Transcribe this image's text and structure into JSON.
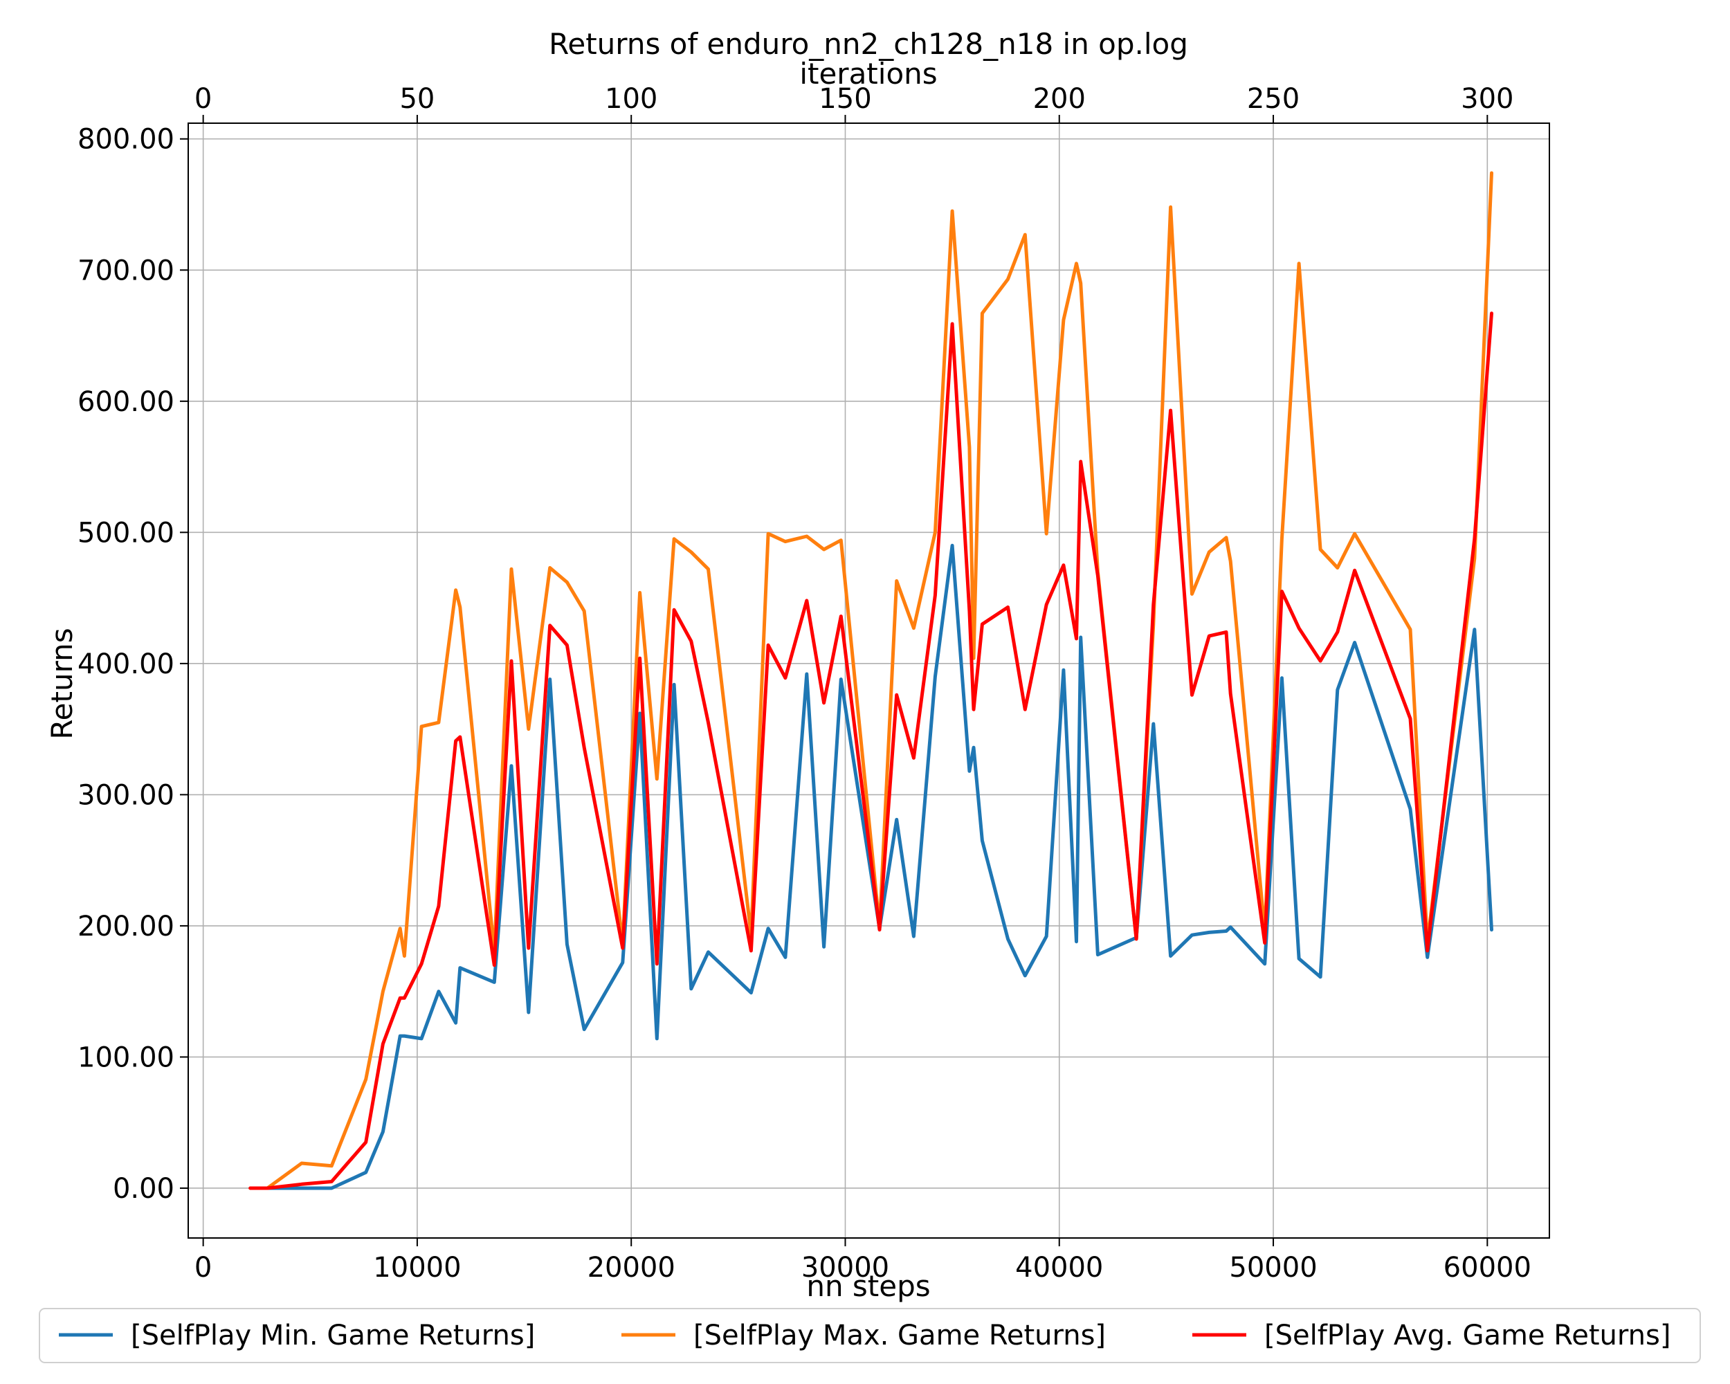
{
  "chart_data": {
    "type": "line",
    "title": "Returns of enduro_nn2_ch128_n18 in op.log",
    "xlabel": "nn steps",
    "x2label": "iterations",
    "ylabel": "Returns",
    "xlim": [
      -700,
      62900
    ],
    "ylim": [
      -38,
      812
    ],
    "x2lim": [
      -3.5,
      314.5
    ],
    "xticks": [
      0,
      10000,
      20000,
      30000,
      40000,
      50000,
      60000
    ],
    "x2ticks": [
      0,
      50,
      100,
      150,
      200,
      250,
      300
    ],
    "yticks": [
      0,
      100,
      200,
      300,
      400,
      500,
      600,
      700,
      800
    ],
    "ytick_format": "fixed2",
    "grid": true,
    "legend_position": "bottom",
    "x": [
      2200,
      3000,
      4600,
      6000,
      7600,
      8400,
      9200,
      9400,
      10200,
      11000,
      11800,
      12000,
      13600,
      14400,
      15200,
      16200,
      17000,
      17800,
      19600,
      20400,
      21200,
      22000,
      22800,
      23600,
      25600,
      26400,
      27200,
      28200,
      29000,
      29800,
      31600,
      32400,
      33200,
      34200,
      35000,
      35800,
      36000,
      36400,
      37600,
      38400,
      39400,
      40200,
      40800,
      41000,
      41800,
      43600,
      44400,
      45200,
      46200,
      47000,
      47800,
      48000,
      49600,
      50400,
      51200,
      52200,
      53000,
      53800,
      56400,
      57200,
      59400,
      60200
    ],
    "series": [
      {
        "name": "[SelfPlay Min. Game Returns]",
        "color": "#1f77b4",
        "values": [
          0,
          0,
          0,
          0,
          12,
          43,
          116,
          116,
          114,
          150,
          126,
          168,
          157,
          322,
          134,
          388,
          186,
          121,
          172,
          362,
          114,
          384,
          152,
          180,
          149,
          198,
          176,
          392,
          184,
          388,
          198,
          281,
          192,
          390,
          490,
          318,
          336,
          265,
          190,
          162,
          192,
          395,
          188,
          420,
          178,
          191,
          354,
          177,
          193,
          195,
          196,
          199,
          171,
          389,
          175,
          161,
          380,
          416,
          289,
          176,
          426,
          197
        ]
      },
      {
        "name": "[SelfPlay Max. Game Returns]",
        "color": "#ff7f0e",
        "values": [
          0,
          0,
          19,
          17,
          83,
          150,
          198,
          177,
          352,
          355,
          456,
          443,
          180,
          472,
          350,
          473,
          462,
          440,
          186,
          454,
          312,
          495,
          485,
          472,
          193,
          499,
          493,
          497,
          487,
          494,
          199,
          463,
          427,
          500,
          745,
          565,
          404,
          667,
          693,
          727,
          499,
          662,
          705,
          690,
          470,
          190,
          430,
          748,
          453,
          485,
          496,
          478,
          195,
          495,
          705,
          487,
          473,
          499,
          426,
          187,
          480,
          774
        ]
      },
      {
        "name": "[SelfPlay Avg. Game Returns]",
        "color": "#ff0000",
        "values": [
          0,
          0,
          3,
          5,
          35,
          110,
          145,
          145,
          171,
          215,
          341,
          344,
          170,
          402,
          183,
          429,
          414,
          336,
          183,
          404,
          171,
          441,
          417,
          355,
          181,
          414,
          389,
          448,
          370,
          436,
          197,
          376,
          328,
          452,
          659,
          440,
          365,
          430,
          443,
          365,
          445,
          475,
          419,
          554,
          467,
          190,
          445,
          593,
          376,
          421,
          424,
          377,
          187,
          455,
          427,
          402,
          424,
          471,
          358,
          181,
          495,
          667
        ]
      }
    ]
  }
}
